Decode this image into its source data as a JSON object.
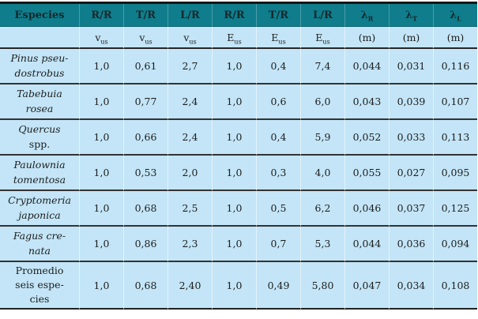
{
  "colors": {
    "header_bg": "#0F7D8C",
    "body_bg": "#C3E5F7",
    "rule_dark": "#333333",
    "header_text": "#15282B",
    "body_text": "#1D1D1D"
  },
  "table": {
    "header": {
      "row1": [
        {
          "main": "Especies",
          "sub": ""
        },
        {
          "main": "R/R",
          "sub": ""
        },
        {
          "main": "T/R",
          "sub": ""
        },
        {
          "main": "L/R",
          "sub": ""
        },
        {
          "main": "R/R",
          "sub": ""
        },
        {
          "main": "T/R",
          "sub": ""
        },
        {
          "main": "L/R",
          "sub": ""
        },
        {
          "main": "λ",
          "sub": "R"
        },
        {
          "main": "λ",
          "sub": "T"
        },
        {
          "main": "λ",
          "sub": "L"
        }
      ],
      "row2": [
        {
          "main": "",
          "sub": ""
        },
        {
          "main": "v",
          "sub": "us"
        },
        {
          "main": "v",
          "sub": "us"
        },
        {
          "main": "v",
          "sub": "us"
        },
        {
          "main": "E",
          "sub": "us"
        },
        {
          "main": "E",
          "sub": "us"
        },
        {
          "main": "E",
          "sub": "us"
        },
        {
          "main": "(m)",
          "sub": ""
        },
        {
          "main": "(m)",
          "sub": ""
        },
        {
          "main": "(m)",
          "sub": ""
        }
      ]
    },
    "rows": [
      {
        "species": {
          "italic": "Pinus pseu-\ndostrobus",
          "roman": ""
        },
        "values": [
          "1,0",
          "0,61",
          "2,7",
          "1,0",
          "0,4",
          "7,4",
          "0,044",
          "0,031",
          "0,116"
        ]
      },
      {
        "species": {
          "italic": "Tabebuia\nrosea",
          "roman": ""
        },
        "values": [
          "1,0",
          "0,77",
          "2,4",
          "1,0",
          "0,6",
          "6,0",
          "0,043",
          "0,039",
          "0,107"
        ]
      },
      {
        "species": {
          "italic": "Quercus\n",
          "roman": "spp."
        },
        "values": [
          "1,0",
          "0,66",
          "2,4",
          "1,0",
          "0,4",
          "5,9",
          "0,052",
          "0,033",
          "0,113"
        ]
      },
      {
        "species": {
          "italic": "Paulownia\ntomentosa",
          "roman": ""
        },
        "values": [
          "1,0",
          "0,53",
          "2,0",
          "1,0",
          "0,3",
          "4,0",
          "0,055",
          "0,027",
          "0,095"
        ]
      },
      {
        "species": {
          "italic": "Cryptomeria\njaponica",
          "roman": ""
        },
        "values": [
          "1,0",
          "0,68",
          "2,5",
          "1,0",
          "0,5",
          "6,2",
          "0,046",
          "0,037",
          "0,125"
        ]
      },
      {
        "species": {
          "italic": "Fagus cre-\nnata",
          "roman": ""
        },
        "values": [
          "1,0",
          "0,86",
          "2,3",
          "1,0",
          "0,7",
          "5,3",
          "0,044",
          "0,036",
          "0,094"
        ]
      },
      {
        "species": {
          "italic": "",
          "roman": "Promedio\nseis espe-\ncies"
        },
        "values": [
          "1,0",
          "0,68",
          "2,40",
          "1,0",
          "0,49",
          "5,80",
          "0,047",
          "0,034",
          "0,108"
        ]
      }
    ]
  }
}
